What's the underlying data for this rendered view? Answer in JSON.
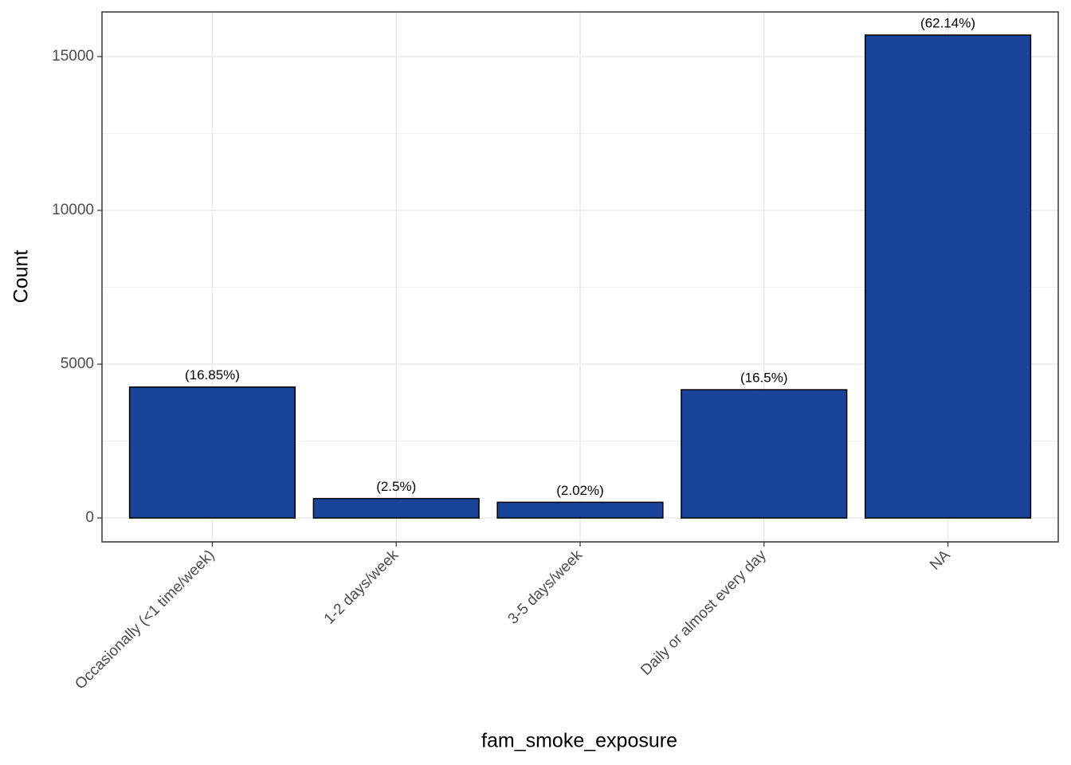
{
  "chart_data": {
    "type": "bar",
    "x_label": "fam_smoke_exposure",
    "y_label": "Count",
    "categories": [
      "Occasionally (<1 time/week)",
      "1-2 days/week",
      "3-5 days/week",
      "Daily or almost every day",
      "NA"
    ],
    "values": [
      4257,
      632,
      510,
      4169,
      15699
    ],
    "annotations": [
      "(16.85%)",
      "(2.5%)",
      "(2.02%)",
      "(16.5%)",
      "(62.14%)"
    ],
    "color": "#1a4499",
    "ylim": [
      -777,
      16451
    ],
    "yticks": [
      0,
      5000,
      10000,
      15000
    ],
    "y_minor_ticks": [
      2500,
      7500,
      12500
    ],
    "grid": true
  }
}
